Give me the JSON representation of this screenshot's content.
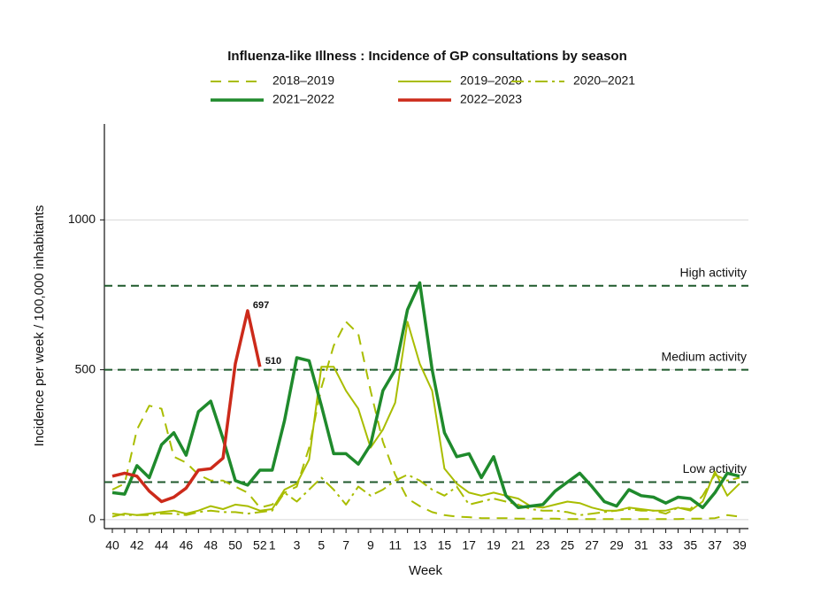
{
  "chart_data": {
    "type": "line",
    "title": "Influenza-like Illness : Incidence of GP consultations by season",
    "x_label": "Week",
    "y_label": "Incidence per week / 100,000 inhabitants",
    "categories": [
      "40",
      null,
      "42",
      null,
      "44",
      null,
      "46",
      null,
      "48",
      null,
      "50",
      null,
      "52",
      "1",
      null,
      "3",
      null,
      "5",
      null,
      "7",
      null,
      "9",
      null,
      "11",
      null,
      "13",
      null,
      "15",
      null,
      "17",
      null,
      "19",
      null,
      "21",
      null,
      "23",
      null,
      "25",
      null,
      "27",
      null,
      "29",
      null,
      "31",
      null,
      "33",
      null,
      "35",
      null,
      "37",
      null,
      "39"
    ],
    "ylim": [
      -30,
      1320
    ],
    "yticks": [
      0,
      500,
      1000
    ],
    "grid": true,
    "legend": "top",
    "series": [
      {
        "name": "2018–2019",
        "color": "#a9bd00",
        "dash": "dashed",
        "width": 2,
        "values": [
          100,
          120,
          300,
          380,
          370,
          210,
          190,
          150,
          130,
          130,
          110,
          90,
          40,
          50,
          90,
          110,
          240,
          440,
          580,
          660,
          620,
          430,
          260,
          150,
          70,
          45,
          25,
          15,
          10,
          8,
          5,
          5,
          5,
          3,
          3,
          3,
          3,
          2,
          2,
          2,
          2,
          2,
          2,
          2,
          2,
          2,
          2,
          3,
          3,
          5,
          15,
          10
        ]
      },
      {
        "name": "2019–2020",
        "color": "#a9bd00",
        "dash": "solid",
        "width": 2,
        "values": [
          10,
          20,
          15,
          20,
          25,
          30,
          20,
          30,
          45,
          35,
          50,
          45,
          30,
          35,
          100,
          120,
          200,
          510,
          510,
          430,
          370,
          240,
          300,
          390,
          660,
          520,
          430,
          170,
          120,
          90,
          80,
          90,
          80,
          70,
          45,
          40,
          50,
          60,
          55,
          40,
          30,
          30,
          40,
          35,
          30,
          30,
          40,
          30,
          60,
          160,
          80,
          120
        ]
      },
      {
        "name": "2020–2021",
        "color": "#a9bd00",
        "dash": "dashdot",
        "width": 2,
        "values": [
          20,
          15,
          15,
          15,
          20,
          20,
          15,
          25,
          30,
          25,
          25,
          20,
          25,
          30,
          90,
          60,
          100,
          140,
          100,
          50,
          110,
          80,
          100,
          130,
          150,
          130,
          100,
          80,
          110,
          50,
          60,
          70,
          60,
          50,
          35,
          30,
          30,
          25,
          15,
          20,
          25,
          30,
          35,
          30,
          30,
          20,
          40,
          35,
          80,
          150,
          130,
          140
        ]
      },
      {
        "name": "2021–2022",
        "color": "#1f8a2c",
        "dash": "solid",
        "width": 3.5,
        "values": [
          90,
          85,
          180,
          140,
          250,
          290,
          215,
          360,
          395,
          270,
          130,
          115,
          165,
          165,
          330,
          540,
          530,
          380,
          220,
          220,
          185,
          250,
          430,
          500,
          700,
          790,
          500,
          290,
          210,
          220,
          140,
          210,
          80,
          40,
          45,
          50,
          95,
          125,
          155,
          110,
          60,
          45,
          100,
          80,
          75,
          55,
          75,
          70,
          40,
          90,
          155,
          145
        ]
      },
      {
        "name": "2022–2023",
        "color": "#cc2a1a",
        "dash": "solid",
        "width": 3.5,
        "data_labels": "peak_and_last",
        "values": [
          145,
          155,
          145,
          95,
          60,
          75,
          105,
          165,
          170,
          205,
          520,
          697,
          510,
          null,
          null,
          null,
          null,
          null,
          null,
          null,
          null,
          null,
          null,
          null,
          null,
          null,
          null,
          null,
          null,
          null,
          null,
          null,
          null,
          null,
          null,
          null,
          null,
          null,
          null,
          null,
          null,
          null,
          null,
          null,
          null,
          null,
          null,
          null,
          null,
          null,
          null,
          null
        ]
      }
    ],
    "reference_lines": [
      {
        "label": "High activity",
        "value": 780,
        "color": "#1f5a2c"
      },
      {
        "label": "Medium activity",
        "value": 500,
        "color": "#1f5a2c"
      },
      {
        "label": "Low activity",
        "value": 125,
        "color": "#1f5a2c"
      }
    ]
  }
}
